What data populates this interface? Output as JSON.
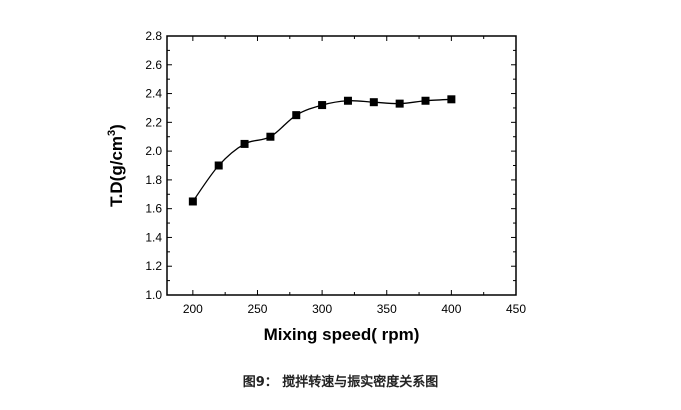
{
  "chart_data": {
    "type": "line",
    "title": "",
    "xlabel": "Mixing speed(   rpm)",
    "ylabel": "T.D(g/cm",
    "ylabel_sup": "3",
    "ylabel_close": ")",
    "xlim": [
      180,
      450
    ],
    "ylim": [
      1.0,
      2.8
    ],
    "xticks": [
      200,
      250,
      300,
      350,
      400,
      450
    ],
    "yticks": [
      1.0,
      1.2,
      1.4,
      1.6,
      1.8,
      2.0,
      2.2,
      2.4,
      2.6,
      2.8
    ],
    "grid": false,
    "marker": "square",
    "color": "#000000",
    "series": [
      {
        "x": [
          200,
          220,
          240,
          260,
          280,
          300,
          320,
          340,
          360,
          380,
          400
        ],
        "y": [
          1.65,
          1.9,
          2.05,
          2.1,
          2.25,
          2.32,
          2.35,
          2.34,
          2.33,
          2.35,
          2.36
        ]
      }
    ]
  },
  "caption": "图9： 搅拌转速与振实密度关系图"
}
